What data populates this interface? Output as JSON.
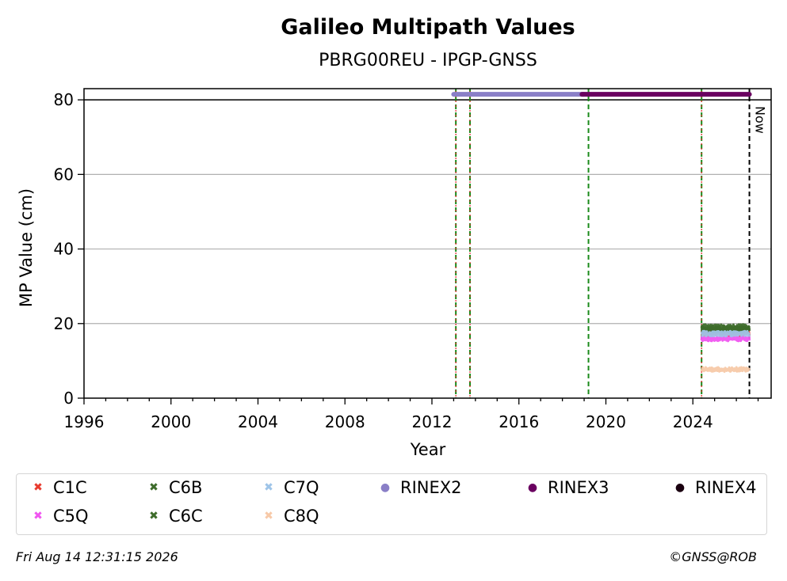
{
  "chart_data": {
    "type": "scatter",
    "title": "Galileo Multipath Values",
    "subtitle": "PBRG00REU - IPGP-GNSS",
    "xlabel": "Year",
    "ylabel": "MP Value (cm)",
    "xlim": [
      1996,
      2027.6
    ],
    "ylim": [
      0,
      83
    ],
    "xticks": [
      1996,
      2000,
      2004,
      2008,
      2012,
      2016,
      2020,
      2024
    ],
    "yticks": [
      0,
      20,
      40,
      60,
      80
    ],
    "grid": "y",
    "now_label": "Now",
    "now_year": 2026.6,
    "threshold_line": 80,
    "event_lines": [
      {
        "year": 2013.1,
        "style": "green-red"
      },
      {
        "year": 2013.75,
        "style": "green-red"
      },
      {
        "year": 2019.2,
        "style": "green"
      },
      {
        "year": 2024.4,
        "style": "green-red"
      }
    ],
    "rinex_bars": [
      {
        "name": "RINEX2",
        "start": 2013.0,
        "end": 2019.0,
        "value": 81.5,
        "color": "#8a7fc7"
      },
      {
        "name": "RINEX3",
        "start": 2018.9,
        "end": 2026.6,
        "value": 81.5,
        "color": "#6a0060"
      }
    ],
    "series": [
      {
        "name": "C1C",
        "color": "#e83a2e",
        "marker": "x",
        "start": 2024.4,
        "end": 2026.6,
        "mean": 17.5,
        "noise": 0.8
      },
      {
        "name": "C5Q",
        "color": "#f055f0",
        "marker": "x",
        "start": 2024.4,
        "end": 2026.6,
        "mean": 16.0,
        "noise": 0.7
      },
      {
        "name": "C6B",
        "color": "#3d6b2a",
        "marker": "x",
        "start": 2024.4,
        "end": 2026.6,
        "mean": 19.0,
        "noise": 0.8
      },
      {
        "name": "C6C",
        "color": "#3d6b2a",
        "marker": "x",
        "start": 2024.4,
        "end": 2026.6,
        "mean": 18.5,
        "noise": 0.8
      },
      {
        "name": "C7Q",
        "color": "#9ec4e8",
        "marker": "x",
        "start": 2024.4,
        "end": 2026.6,
        "mean": 17.3,
        "noise": 0.7
      },
      {
        "name": "C8Q",
        "color": "#f7c9a8",
        "marker": "x",
        "start": 2024.4,
        "end": 2026.6,
        "mean": 7.7,
        "noise": 0.6
      }
    ]
  },
  "legend": {
    "items": [
      {
        "label": "C1C",
        "color": "#e83a2e",
        "marker": "x"
      },
      {
        "label": "C6B",
        "color": "#3d6b2a",
        "marker": "x"
      },
      {
        "label": "C7Q",
        "color": "#9ec4e8",
        "marker": "x"
      },
      {
        "label": "RINEX2",
        "color": "#8a7fc7",
        "marker": "dot"
      },
      {
        "label": "RINEX3",
        "color": "#6a0060",
        "marker": "dot"
      },
      {
        "label": "RINEX4",
        "color": "#1a0010",
        "marker": "dot"
      },
      {
        "label": "C5Q",
        "color": "#f055f0",
        "marker": "x"
      },
      {
        "label": "C6C",
        "color": "#3d6b2a",
        "marker": "x"
      },
      {
        "label": "C8Q",
        "color": "#f7c9a8",
        "marker": "x"
      }
    ]
  },
  "footer": {
    "timestamp": "Fri Aug 14 12:31:15 2026",
    "credit": "©GNSS@ROB"
  }
}
